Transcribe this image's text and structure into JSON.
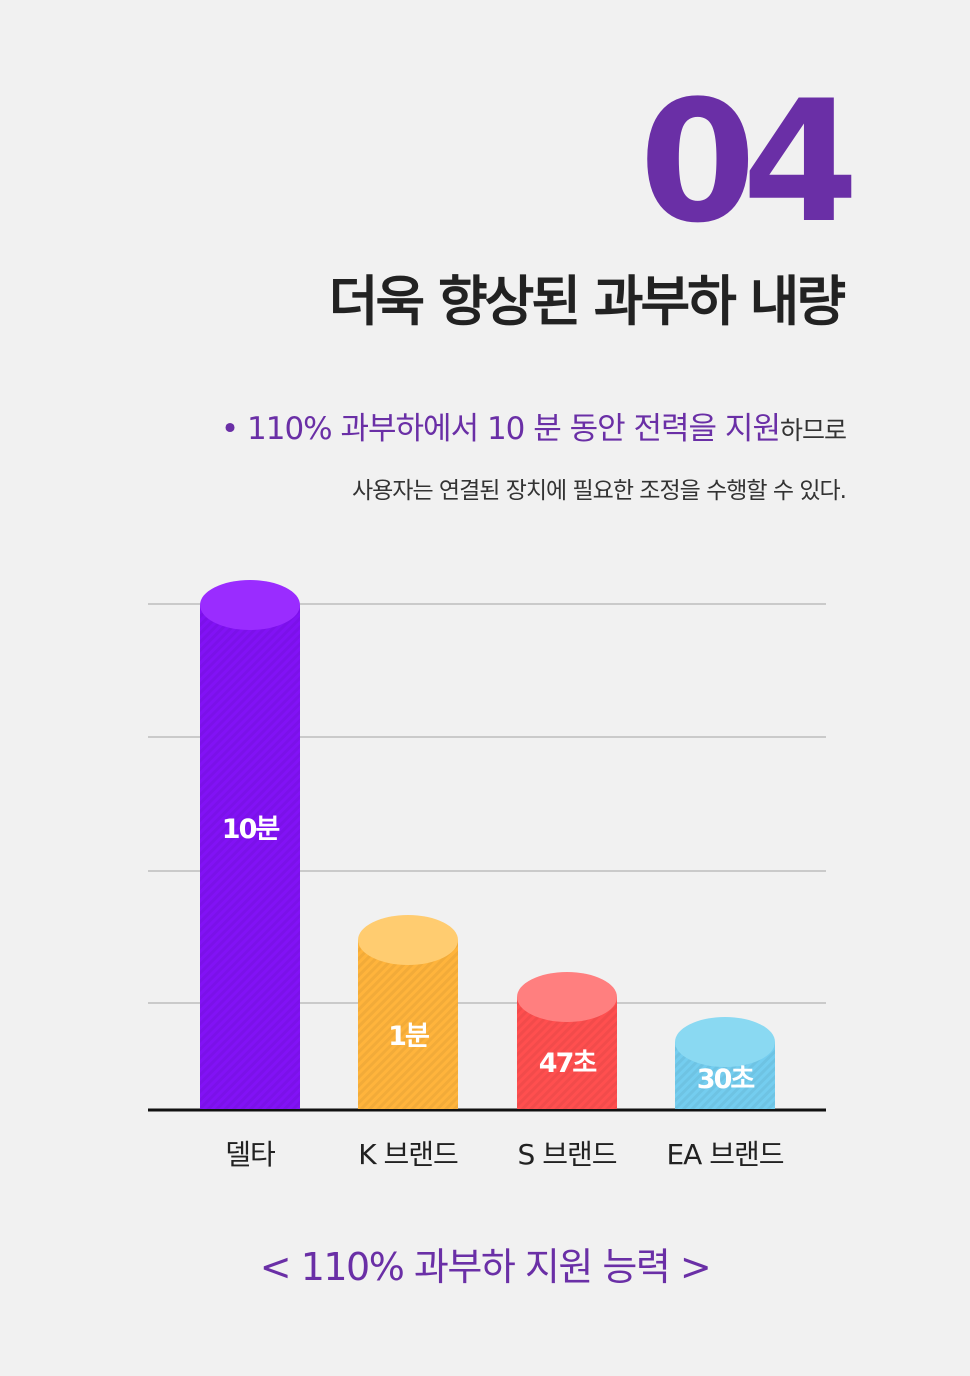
{
  "section_number": "04",
  "heading": "더욱 향상된 과부하 내량",
  "description": {
    "bullet": "•",
    "highlight": "110% 과부하에서 10 분 동안 전력을 지원",
    "suffix": "하므로",
    "line2": "사용자는 연결된 장치에 필요한 조정을 수행할 수 있다."
  },
  "caption": "< 110% 과부하 지원 능력 >",
  "colors": {
    "accent": "#6a2fa6",
    "text_dark": "#222222"
  },
  "chart_data": {
    "type": "bar",
    "categories": [
      "델타",
      "K 브랜드",
      "S 브랜드",
      "EA 브랜드"
    ],
    "bar_labels": [
      "10분",
      "1분",
      "47초",
      "30초"
    ],
    "values_seconds": [
      600,
      60,
      47,
      30
    ],
    "series_colors": [
      {
        "front": "#8212f5",
        "top": "#9a2cff"
      },
      {
        "front": "#ffb43c",
        "top": "#ffcc70"
      },
      {
        "front": "#ff4f4f",
        "top": "#ff7f7f"
      },
      {
        "front": "#74cdef",
        "top": "#8ad9f2"
      }
    ],
    "grid": true,
    "title": "",
    "xlabel": "",
    "ylabel": ""
  }
}
